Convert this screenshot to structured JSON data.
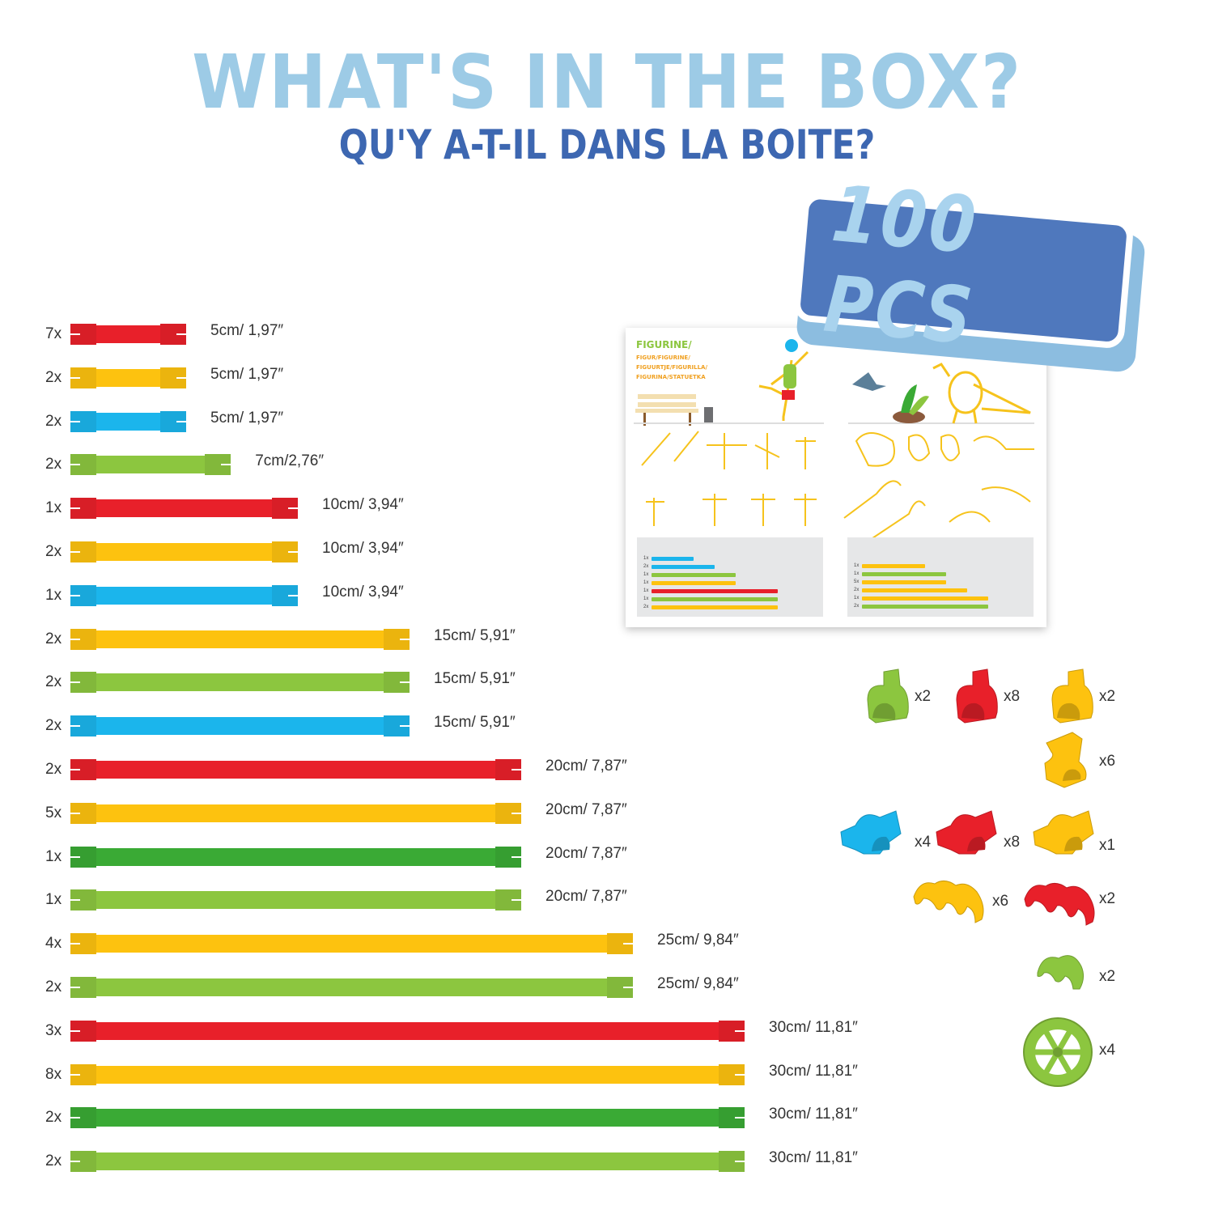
{
  "header": {
    "title": "WHAT'S IN THE BOX?",
    "subtitle": "QU'Y A-T-IL DANS LA BOITE?"
  },
  "badge": {
    "text": "100 PCS"
  },
  "colors": {
    "red": "#e8202a",
    "yellow": "#fdc20f",
    "blue": "#1bb5ec",
    "lightgreen": "#8cc63f",
    "darkgreen": "#3aaa35",
    "title": "#9dcbe6",
    "subtitle": "#3d67b1",
    "badge": "#4f78bd"
  },
  "rods": [
    {
      "qty": "7x",
      "color": "red",
      "length_cm": 5,
      "label": "5cm/ 1,97″"
    },
    {
      "qty": "2x",
      "color": "yellow",
      "length_cm": 5,
      "label": "5cm/ 1,97″"
    },
    {
      "qty": "2x",
      "color": "blue",
      "length_cm": 5,
      "label": "5cm/ 1,97″"
    },
    {
      "qty": "2x",
      "color": "lightgreen",
      "length_cm": 7,
      "label": "7cm/2,76″"
    },
    {
      "qty": "1x",
      "color": "red",
      "length_cm": 10,
      "label": "10cm/ 3,94″"
    },
    {
      "qty": "2x",
      "color": "yellow",
      "length_cm": 10,
      "label": "10cm/ 3,94″"
    },
    {
      "qty": "1x",
      "color": "blue",
      "length_cm": 10,
      "label": "10cm/ 3,94″"
    },
    {
      "qty": "2x",
      "color": "yellow",
      "length_cm": 15,
      "label": "15cm/ 5,91″"
    },
    {
      "qty": "2x",
      "color": "lightgreen",
      "length_cm": 15,
      "label": "15cm/ 5,91″"
    },
    {
      "qty": "2x",
      "color": "blue",
      "length_cm": 15,
      "label": "15cm/ 5,91″"
    },
    {
      "qty": "2x",
      "color": "red",
      "length_cm": 20,
      "label": "20cm/ 7,87″"
    },
    {
      "qty": "5x",
      "color": "yellow",
      "length_cm": 20,
      "label": "20cm/ 7,87″"
    },
    {
      "qty": "1x",
      "color": "darkgreen",
      "length_cm": 20,
      "label": "20cm/ 7,87″"
    },
    {
      "qty": "1x",
      "color": "lightgreen",
      "length_cm": 20,
      "label": "20cm/ 7,87″"
    },
    {
      "qty": "4x",
      "color": "yellow",
      "length_cm": 25,
      "label": "25cm/ 9,84″"
    },
    {
      "qty": "2x",
      "color": "lightgreen",
      "length_cm": 25,
      "label": "25cm/ 9,84″"
    },
    {
      "qty": "3x",
      "color": "red",
      "length_cm": 30,
      "label": "30cm/ 11,81″"
    },
    {
      "qty": "8x",
      "color": "yellow",
      "length_cm": 30,
      "label": "30cm/ 11,81″"
    },
    {
      "qty": "2x",
      "color": "darkgreen",
      "length_cm": 30,
      "label": "30cm/ 11,81″"
    },
    {
      "qty": "2x",
      "color": "lightgreen",
      "length_cm": 30,
      "label": "30cm/ 11,81″"
    }
  ],
  "connectors": [
    {
      "type": "elbow",
      "color": "lightgreen",
      "qty": "x2"
    },
    {
      "type": "elbow",
      "color": "red",
      "qty": "x8"
    },
    {
      "type": "elbow",
      "color": "yellow",
      "qty": "x2"
    },
    {
      "type": "double-clip",
      "color": "yellow",
      "qty": "x6"
    },
    {
      "type": "cross",
      "color": "blue",
      "qty": "x4"
    },
    {
      "type": "cross",
      "color": "red",
      "qty": "x8"
    },
    {
      "type": "cross",
      "color": "yellow",
      "qty": "x1"
    },
    {
      "type": "triple-arch",
      "color": "yellow",
      "qty": "x6"
    },
    {
      "type": "triple-arch",
      "color": "red",
      "qty": "x2"
    },
    {
      "type": "double-arch",
      "color": "lightgreen",
      "qty": "x2"
    },
    {
      "type": "wheel",
      "color": "lightgreen",
      "qty": "x4"
    }
  ],
  "booklet": {
    "heading": "FIGURINE/",
    "subheading_lines": [
      "FIGUR/FIGURINE/",
      "FIGUURTJE/FIGURILLA/",
      "FIGURINA/STATUETKA"
    ],
    "left_parts": [
      {
        "qty": "1x",
        "color": "blue",
        "length_cm": 10
      },
      {
        "qty": "2x",
        "color": "blue",
        "length_cm": 15
      },
      {
        "qty": "1x",
        "color": "lightgreen",
        "length_cm": 20
      },
      {
        "qty": "1x",
        "color": "yellow",
        "length_cm": 20
      },
      {
        "qty": "1x",
        "color": "red",
        "length_cm": 30
      },
      {
        "qty": "1x",
        "color": "lightgreen",
        "length_cm": 30
      },
      {
        "qty": "2x",
        "color": "yellow",
        "length_cm": 30
      }
    ],
    "right_parts": [
      {
        "qty": "1x",
        "color": "yellow",
        "length_cm": 15
      },
      {
        "qty": "1x",
        "color": "lightgreen",
        "length_cm": 20
      },
      {
        "qty": "5x",
        "color": "yellow",
        "length_cm": 20
      },
      {
        "qty": "2x",
        "color": "yellow",
        "length_cm": 25
      },
      {
        "qty": "1x",
        "color": "yellow",
        "length_cm": 30
      },
      {
        "qty": "2x",
        "color": "lightgreen",
        "length_cm": 30
      }
    ]
  }
}
